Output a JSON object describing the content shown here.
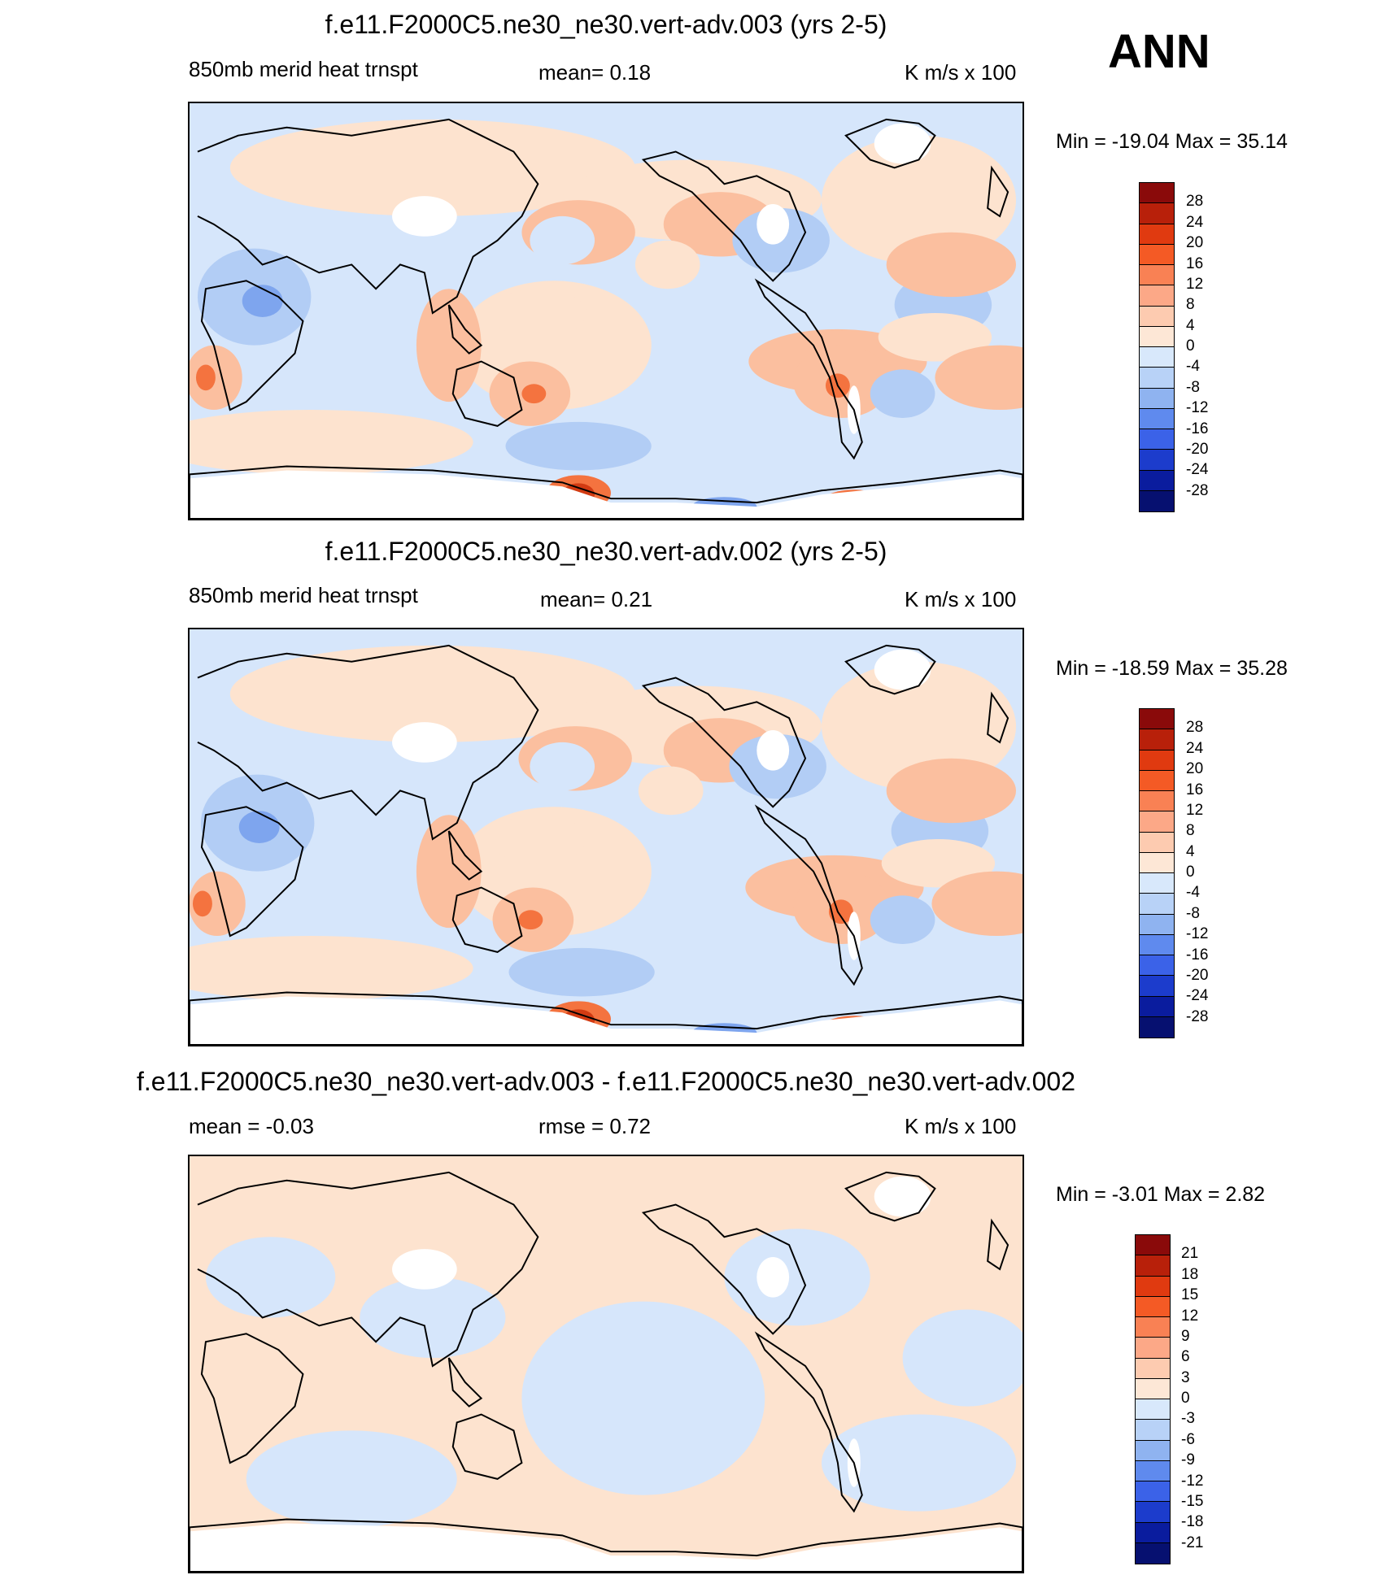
{
  "season": "ANN",
  "panels": [
    {
      "title": "f.e11.F2000C5.ne30_ne30.vert-adv.003 (yrs 2-5)",
      "left_label": "850mb merid heat trnspt",
      "center_label": "mean=   0.18",
      "right_label": "K m/s x 100",
      "minmax": "Min = -19.04 Max =  35.14",
      "colorbar": {
        "labels": [
          "28",
          "24",
          "20",
          "16",
          "12",
          "8",
          "4",
          "0",
          "-4",
          "-8",
          "-12",
          "-16",
          "-20",
          "-24",
          "-28"
        ],
        "colors": [
          "#8a0a0a",
          "#b8200a",
          "#e03a10",
          "#f45a25",
          "#f98154",
          "#fca887",
          "#fdcbb0",
          "#fde7d6",
          "#d8e8fb",
          "#b8d2f7",
          "#8fb3f0",
          "#5f8aee",
          "#3b62e8",
          "#1c3ccc",
          "#0a1c9e",
          "#061070"
        ]
      }
    },
    {
      "title": "f.e11.F2000C5.ne30_ne30.vert-adv.002 (yrs 2-5)",
      "left_label": "850mb merid heat trnspt",
      "center_label": "mean=   0.21",
      "right_label": "K m/s x 100",
      "minmax": "Min = -18.59 Max =  35.28",
      "colorbar": {
        "labels": [
          "28",
          "24",
          "20",
          "16",
          "12",
          "8",
          "4",
          "0",
          "-4",
          "-8",
          "-12",
          "-16",
          "-20",
          "-24",
          "-28"
        ],
        "colors": [
          "#8a0a0a",
          "#b8200a",
          "#e03a10",
          "#f45a25",
          "#f98154",
          "#fca887",
          "#fdcbb0",
          "#fde7d6",
          "#d8e8fb",
          "#b8d2f7",
          "#8fb3f0",
          "#5f8aee",
          "#3b62e8",
          "#1c3ccc",
          "#0a1c9e",
          "#061070"
        ]
      }
    },
    {
      "title": "f.e11.F2000C5.ne30_ne30.vert-adv.003 - f.e11.F2000C5.ne30_ne30.vert-adv.002",
      "left_label": "mean =  -0.03",
      "center_label": "rmse =   0.72",
      "right_label": "K m/s x 100",
      "minmax": "Min =  -3.01 Max =   2.82",
      "colorbar": {
        "labels": [
          "21",
          "18",
          "15",
          "12",
          "9",
          "6",
          "3",
          "0",
          "-3",
          "-6",
          "-9",
          "-12",
          "-15",
          "-18",
          "-21"
        ],
        "colors": [
          "#8a0a0a",
          "#b8200a",
          "#e03a10",
          "#f45a25",
          "#f98154",
          "#fca887",
          "#fdcbb0",
          "#fde7d6",
          "#d8e8fb",
          "#b8d2f7",
          "#8fb3f0",
          "#5f8aee",
          "#3b62e8",
          "#1c3ccc",
          "#0a1c9e",
          "#061070"
        ]
      }
    }
  ],
  "palette": {
    "land_outline": "#000000",
    "missing": "#ffffff",
    "light_pos": "#fde3cf",
    "mid_pos": "#fbbf9f",
    "strong_pos": "#f4733f",
    "max_pos": "#d23b12",
    "light_neg": "#d6e6fb",
    "mid_neg": "#b2cdf5",
    "strong_neg": "#7ea5ee",
    "max_neg": "#3b62e8"
  }
}
